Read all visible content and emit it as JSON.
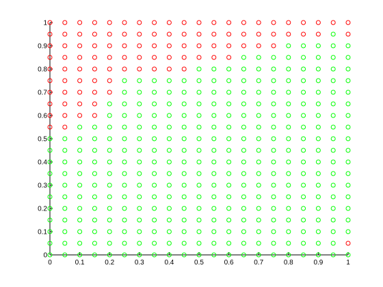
{
  "chart_data": {
    "type": "scatter",
    "title": "",
    "xlabel": "",
    "ylabel": "",
    "xlim": [
      0,
      1
    ],
    "ylim": [
      0,
      1
    ],
    "grid": false,
    "marker": "circle-open",
    "grid_points": {
      "x_start": 0,
      "x_step": 0.05,
      "x_count": 21,
      "y_start": 0,
      "y_step": 0.05,
      "y_count": 21
    },
    "series": [
      {
        "color": "#ff0000",
        "rule": "red when y >= boundary_y[x index]",
        "boundary_y": [
          0.55,
          0.55,
          0.6,
          0.6,
          0.7,
          0.8,
          0.8,
          0.8,
          0.8,
          0.8,
          0.85,
          0.85,
          0.85,
          0.9,
          0.9,
          0.9,
          0.95,
          0.95,
          0.95,
          1.0,
          0.95
        ],
        "extra_points": [
          [
            1.0,
            0.05
          ]
        ]
      },
      {
        "color": "#00ff00",
        "rule": "all remaining grid points"
      }
    ],
    "x_ticks": [
      "0",
      "0.1",
      "0.2",
      "0.3",
      "0.4",
      "0.5",
      "0.6",
      "0.7",
      "0.8",
      "0.9",
      "1"
    ],
    "y_ticks": [
      "0",
      "0.1",
      "0.2",
      "0.3",
      "0.4",
      "0.5",
      "0.6",
      "0.7",
      "0.8",
      "0.9",
      "1"
    ]
  }
}
